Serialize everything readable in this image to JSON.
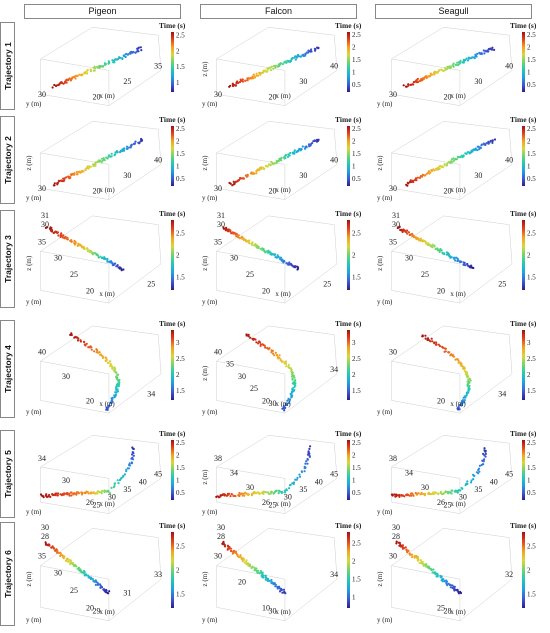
{
  "columns": [
    "Pigeon",
    "Falcon",
    "Seagull"
  ],
  "rows": [
    "Trajectory 1",
    "Trajectory 2",
    "Trajectory 3",
    "Trajectory 4",
    "Trajectory 5",
    "Trajectory 6"
  ],
  "colorbar": {
    "label": "Time (s)",
    "colormap": [
      "#2b1d8f",
      "#3d5bd8",
      "#1fa3e0",
      "#20c9b5",
      "#6fd66a",
      "#d8d83a",
      "#f5a11f",
      "#e4421b",
      "#a3100f"
    ]
  },
  "chart_data": [
    {
      "type": "scatter",
      "row": "Trajectory 1",
      "column": "Pigeon",
      "xlabel": "x (m)",
      "ylabel": "y (m)",
      "zlabel": "",
      "x_ticks": [
        "20",
        "25",
        "35"
      ],
      "y_ticks": [
        "30"
      ],
      "z_ticks": [],
      "colorbar_ticks": [
        "1",
        "1.5",
        "2",
        "2.5"
      ],
      "time_range": [
        0.8,
        2.6
      ],
      "trajectory": [
        [
          30,
          2.6
        ],
        [
          15,
          1.7
        ],
        [
          0,
          0.8
        ]
      ]
    },
    {
      "type": "scatter",
      "row": "Trajectory 1",
      "column": "Falcon",
      "xlabel": "x (m)",
      "ylabel": "y (m)",
      "zlabel": "z (m)",
      "x_ticks": [
        "20",
        "30",
        "40"
      ],
      "y_ticks": [
        "30"
      ],
      "z_ticks": [],
      "colorbar_ticks": [
        "0.5",
        "1",
        "1.5",
        "2",
        "2.5"
      ],
      "time_range": [
        0.3,
        2.6
      ],
      "trajectory": [
        [
          30,
          2.6
        ],
        [
          15,
          1.5
        ],
        [
          0,
          0.3
        ]
      ]
    },
    {
      "type": "scatter",
      "row": "Trajectory 1",
      "column": "Seagull",
      "xlabel": "x (m)",
      "ylabel": "y (m)",
      "zlabel": "",
      "x_ticks": [
        "20",
        "30",
        "40"
      ],
      "y_ticks": [
        "30"
      ],
      "z_ticks": [],
      "colorbar_ticks": [
        "0.5",
        "1",
        "1.5",
        "2",
        "2.5"
      ],
      "time_range": [
        0.3,
        2.6
      ],
      "trajectory": [
        [
          30,
          2.6
        ],
        [
          15,
          1.5
        ],
        [
          0,
          0.3
        ]
      ]
    },
    {
      "type": "scatter",
      "row": "Trajectory 2",
      "column": "Pigeon",
      "xlabel": "x (m)",
      "ylabel": "y (m)",
      "zlabel": "z (m)",
      "x_ticks": [
        "20",
        "30",
        "40"
      ],
      "y_ticks": [
        "30"
      ],
      "z_ticks": [],
      "colorbar_ticks": [
        "0.5",
        "1",
        "1.5",
        "2",
        "2.5"
      ],
      "time_range": [
        0.3,
        2.6
      ],
      "trajectory": [
        [
          30,
          2.6
        ],
        [
          15,
          1.5
        ],
        [
          0,
          0.3
        ]
      ]
    },
    {
      "type": "scatter",
      "row": "Trajectory 2",
      "column": "Falcon",
      "xlabel": "x (m)",
      "ylabel": "y (m)",
      "zlabel": "z (m)",
      "x_ticks": [
        "20",
        "30",
        "40"
      ],
      "y_ticks": [
        "30"
      ],
      "z_ticks": [],
      "colorbar_ticks": [
        "0.5",
        "1",
        "1.5",
        "2",
        "2.5"
      ],
      "time_range": [
        0.3,
        2.6
      ],
      "trajectory": [
        [
          30,
          2.6
        ],
        [
          15,
          1.5
        ],
        [
          0,
          0.3
        ]
      ]
    },
    {
      "type": "scatter",
      "row": "Trajectory 2",
      "column": "Seagull",
      "xlabel": "x (m)",
      "ylabel": "y (m)",
      "zlabel": "z (m)",
      "x_ticks": [
        "20",
        "30",
        "40"
      ],
      "y_ticks": [
        "30"
      ],
      "z_ticks": [],
      "colorbar_ticks": [
        "0.5",
        "1",
        "1.5",
        "2",
        "2.5"
      ],
      "time_range": [
        0.3,
        2.6
      ],
      "trajectory": [
        [
          30,
          2.6
        ],
        [
          15,
          1.5
        ],
        [
          0,
          0.3
        ]
      ]
    },
    {
      "type": "scatter",
      "row": "Trajectory 3",
      "column": "Pigeon",
      "xlabel": "x (m)",
      "ylabel": "y (m)",
      "zlabel": "z (m)",
      "x_ticks": [
        "25"
      ],
      "y_ticks": [
        "35",
        "30",
        "25",
        "20"
      ],
      "z_ticks": [
        "31",
        "30"
      ],
      "colorbar_ticks": [
        "1.5",
        "2",
        "2.5"
      ],
      "time_range": [
        1.2,
        2.8
      ],
      "trajectory": [
        [
          36,
          2.8
        ],
        [
          28,
          2.3
        ],
        [
          22,
          1.2
        ]
      ]
    },
    {
      "type": "scatter",
      "row": "Trajectory 3",
      "column": "Falcon",
      "xlabel": "x (m)",
      "ylabel": "y (m)",
      "zlabel": "z (m)",
      "x_ticks": [
        "25"
      ],
      "y_ticks": [
        "35",
        "30",
        "25",
        "20"
      ],
      "z_ticks": [
        "31",
        "30"
      ],
      "colorbar_ticks": [
        "1.5",
        "2",
        "2.5"
      ],
      "time_range": [
        1.2,
        2.8
      ],
      "trajectory": [
        [
          36,
          2.8
        ],
        [
          28,
          2.0
        ],
        [
          22,
          1.2
        ]
      ]
    },
    {
      "type": "scatter",
      "row": "Trajectory 3",
      "column": "Seagull",
      "xlabel": "x (m)",
      "ylabel": "y (m)",
      "zlabel": "z (m)",
      "x_ticks": [
        "25"
      ],
      "y_ticks": [
        "35",
        "30",
        "25",
        "20"
      ],
      "z_ticks": [
        "31",
        "30"
      ],
      "colorbar_ticks": [
        "1.5",
        "2",
        "2.5"
      ],
      "time_range": [
        1.2,
        2.8
      ],
      "trajectory": [
        [
          36,
          2.8
        ],
        [
          28,
          2.0
        ],
        [
          22,
          1.2
        ]
      ]
    },
    {
      "type": "scatter",
      "row": "Trajectory 4",
      "column": "Pigeon",
      "xlabel": "x (m)",
      "ylabel": "y (m)",
      "zlabel": "",
      "x_ticks": [
        "34"
      ],
      "y_ticks": [
        "40",
        "30",
        "20"
      ],
      "z_ticks": [],
      "colorbar_ticks": [
        "1.5",
        "2",
        "2.5",
        "3"
      ],
      "time_range": [
        1.4,
        3.4
      ],
      "trajectory": [
        [
          42,
          3.4
        ],
        [
          32,
          2.4
        ],
        [
          20,
          1.4
        ]
      ]
    },
    {
      "type": "scatter",
      "row": "Trajectory 4",
      "column": "Falcon",
      "xlabel": "x (m)",
      "ylabel": "y (m)",
      "zlabel": "z (m)",
      "x_ticks": [
        "30",
        "34"
      ],
      "y_ticks": [
        "40",
        "35",
        "30",
        "25",
        "20"
      ],
      "z_ticks": [],
      "colorbar_ticks": [
        "1.5",
        "2",
        "2.5",
        "3"
      ],
      "time_range": [
        1.4,
        3.4
      ],
      "trajectory": [
        [
          42,
          3.4
        ],
        [
          30,
          2.4
        ],
        [
          20,
          1.4
        ]
      ]
    },
    {
      "type": "scatter",
      "row": "Trajectory 4",
      "column": "Seagull",
      "xlabel": "x (m)",
      "ylabel": "y (m)",
      "zlabel": "",
      "x_ticks": [
        "34"
      ],
      "y_ticks": [
        "30",
        "20"
      ],
      "z_ticks": [],
      "colorbar_ticks": [
        "1.5",
        "2",
        "2.5",
        "3"
      ],
      "time_range": [
        1.4,
        3.4
      ],
      "trajectory": [
        [
          42,
          3.4
        ],
        [
          30,
          2.6
        ],
        [
          20,
          1.4
        ]
      ]
    },
    {
      "type": "scatter",
      "row": "Trajectory 5",
      "column": "Pigeon",
      "xlabel": "x (m)",
      "ylabel": "y (m)",
      "zlabel": "",
      "x_ticks": [
        "25",
        "30",
        "35",
        "40",
        "45"
      ],
      "y_ticks": [
        "34",
        "30",
        "26"
      ],
      "z_ticks": [],
      "colorbar_ticks": [
        "0.5",
        "1",
        "1.5",
        "2",
        "2.5"
      ],
      "time_range": [
        0.3,
        2.6
      ],
      "trajectory": [
        [
          20,
          2.6
        ],
        [
          35,
          2.0
        ],
        [
          45,
          0.3
        ]
      ]
    },
    {
      "type": "scatter",
      "row": "Trajectory 5",
      "column": "Falcon",
      "xlabel": "x (m)",
      "ylabel": "y (m)",
      "zlabel": "z (m)",
      "x_ticks": [
        "25",
        "30",
        "35",
        "40",
        "45"
      ],
      "y_ticks": [
        "38",
        "34",
        "30",
        "26"
      ],
      "z_ticks": [],
      "colorbar_ticks": [
        "0.5",
        "1",
        "1.5",
        "2",
        "2.5"
      ],
      "time_range": [
        0.3,
        2.6
      ],
      "trajectory": [
        [
          20,
          2.6
        ],
        [
          40,
          1.6
        ],
        [
          45,
          0.3
        ]
      ]
    },
    {
      "type": "scatter",
      "row": "Trajectory 5",
      "column": "Seagull",
      "xlabel": "x (m)",
      "ylabel": "y (m)",
      "zlabel": "",
      "x_ticks": [
        "25",
        "30",
        "35",
        "40",
        "45"
      ],
      "y_ticks": [
        "38",
        "34",
        "30",
        "26"
      ],
      "z_ticks": [],
      "colorbar_ticks": [
        "0.5",
        "1",
        "1.5",
        "2",
        "2.5"
      ],
      "time_range": [
        0.3,
        2.6
      ],
      "trajectory": [
        [
          20,
          2.6
        ],
        [
          40,
          1.6
        ],
        [
          45,
          0.3
        ]
      ]
    },
    {
      "type": "scatter",
      "row": "Trajectory 6",
      "column": "Pigeon",
      "xlabel": "x (m)",
      "ylabel": "y (m)",
      "zlabel": "z (m)",
      "x_ticks": [
        "29",
        "31",
        "33"
      ],
      "y_ticks": [
        "35",
        "30",
        "25",
        "20"
      ],
      "z_ticks": [
        "30",
        "28"
      ],
      "colorbar_ticks": [
        "1.5",
        "2",
        "2.5"
      ],
      "time_range": [
        1.2,
        2.8
      ],
      "trajectory": [
        [
          36,
          2.8
        ],
        [
          28,
          2.0
        ],
        [
          20,
          1.2
        ]
      ]
    },
    {
      "type": "scatter",
      "row": "Trajectory 6",
      "column": "Falcon",
      "xlabel": "x (m)",
      "ylabel": "y (m)",
      "zlabel": "z (m)",
      "x_ticks": [
        "30",
        "34"
      ],
      "y_ticks": [
        "30",
        "20",
        "10"
      ],
      "z_ticks": [
        "30",
        "28"
      ],
      "colorbar_ticks": [
        "1",
        "1.5",
        "2",
        "2.5"
      ],
      "time_range": [
        0.8,
        2.8
      ],
      "trajectory": [
        [
          36,
          2.8
        ],
        [
          24,
          1.8
        ],
        [
          10,
          0.8
        ]
      ]
    },
    {
      "type": "scatter",
      "row": "Trajectory 6",
      "column": "Seagull",
      "xlabel": "x (m)",
      "ylabel": "y (m)",
      "zlabel": "z (m)",
      "x_ticks": [
        "28",
        "32"
      ],
      "y_ticks": [
        "30",
        "25"
      ],
      "z_ticks": [
        "30",
        "28"
      ],
      "colorbar_ticks": [
        "1.5",
        "2",
        "2.5"
      ],
      "time_range": [
        1.2,
        2.8
      ],
      "trajectory": [
        [
          36,
          2.8
        ],
        [
          28,
          2.0
        ],
        [
          22,
          1.2
        ]
      ]
    }
  ]
}
